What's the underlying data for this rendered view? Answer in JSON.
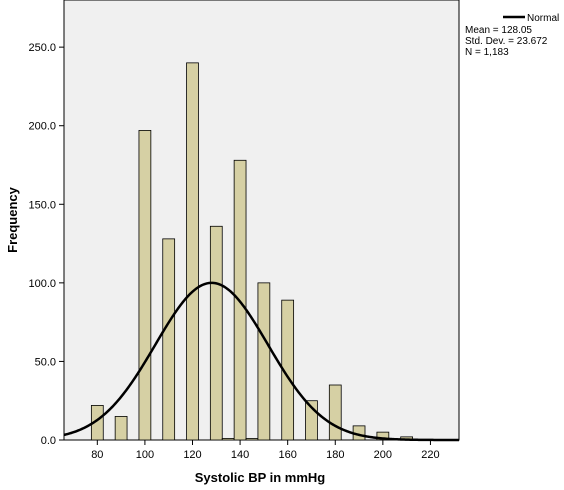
{
  "chart_data": {
    "type": "bar",
    "subtype": "histogram",
    "xlabel": "Systolic BP in mmHg",
    "ylabel": "Frequency",
    "xlim": [
      66,
      232
    ],
    "ylim": [
      0,
      280
    ],
    "x_ticks": [
      80,
      100,
      120,
      140,
      160,
      180,
      200,
      220
    ],
    "x_tick_labels": [
      "80",
      "100",
      "120",
      "140",
      "160",
      "180",
      "200",
      "220"
    ],
    "y_ticks": [
      0,
      50,
      100,
      150,
      200,
      250
    ],
    "y_tick_labels": [
      "0.0",
      "50.0",
      "100.0",
      "150.0",
      "200.0",
      "250.0"
    ],
    "bin_width": 5,
    "bins": [
      {
        "x": 80,
        "value": 22
      },
      {
        "x": 90,
        "value": 15
      },
      {
        "x": 100,
        "value": 197
      },
      {
        "x": 110,
        "value": 128
      },
      {
        "x": 120,
        "value": 240
      },
      {
        "x": 130,
        "value": 136
      },
      {
        "x": 135,
        "value": 1
      },
      {
        "x": 140,
        "value": 178
      },
      {
        "x": 145,
        "value": 1
      },
      {
        "x": 150,
        "value": 100
      },
      {
        "x": 160,
        "value": 89
      },
      {
        "x": 170,
        "value": 25
      },
      {
        "x": 180,
        "value": 35
      },
      {
        "x": 190,
        "value": 9
      },
      {
        "x": 200,
        "value": 5
      },
      {
        "x": 210,
        "value": 2
      }
    ],
    "normal_curve": {
      "legend_label": "Normal",
      "mean": 128.05,
      "std_dev": 23.672,
      "peak_frequency": 100
    },
    "stats": {
      "mean_text": "Mean = 128.05",
      "std_text": "Std. Dev. = 23.672",
      "n_text": "N = 1,183"
    },
    "grid": false,
    "legend_position": "top-right",
    "colors": {
      "bar_fill": "#d6d0a4",
      "bar_stroke": "#000000",
      "plot_background": "#f0f0f0",
      "curve": "#000000"
    }
  }
}
